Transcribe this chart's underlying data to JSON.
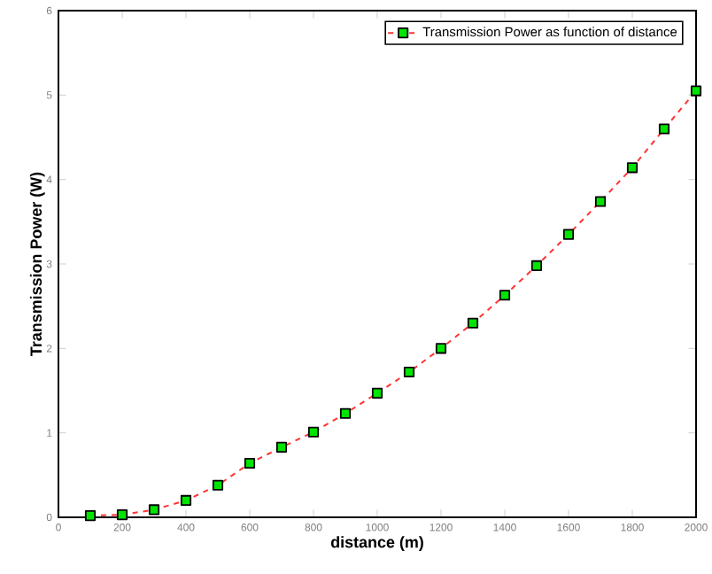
{
  "chart_data": {
    "type": "line",
    "xlabel": "distance (m)",
    "ylabel": "Transmission Power (W)",
    "x": [
      100,
      200,
      300,
      400,
      500,
      600,
      700,
      800,
      900,
      1000,
      1100,
      1200,
      1300,
      1400,
      1500,
      1600,
      1700,
      1800,
      1900,
      2000
    ],
    "series": [
      {
        "name": "Transmission Power as function of distance",
        "color": "#ff3333",
        "values": [
          0.02,
          0.03,
          0.09,
          0.2,
          0.38,
          0.64,
          0.83,
          1.01,
          1.23,
          1.47,
          1.72,
          2.0,
          2.3,
          2.63,
          2.98,
          3.35,
          3.74,
          4.14,
          4.6,
          5.05
        ]
      }
    ],
    "marker": "square",
    "line_style": "dashed",
    "legend": "top right",
    "xlim": [
      0,
      2000
    ],
    "ylim": [
      0,
      6
    ],
    "xticks": [
      0,
      200,
      400,
      600,
      800,
      1000,
      1200,
      1400,
      1600,
      1800,
      2000
    ],
    "yticks": [
      0,
      1,
      2,
      3,
      4,
      5,
      6
    ],
    "grid": false
  }
}
